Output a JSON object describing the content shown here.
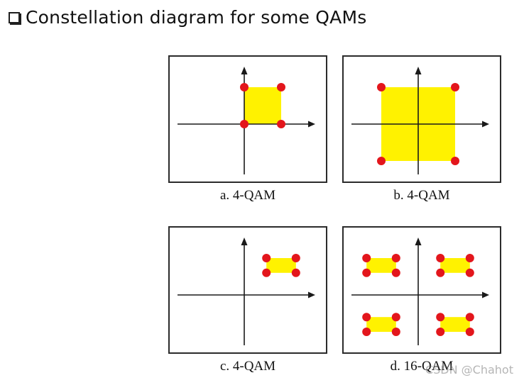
{
  "header": {
    "title": "Constellation diagram for some QAMs"
  },
  "diagrams": [
    {
      "caption": "a. 4-QAM",
      "points": [
        [
          0,
          1
        ],
        [
          1,
          1
        ],
        [
          0,
          0
        ],
        [
          1,
          0
        ]
      ],
      "regions": [
        [
          0,
          0,
          1,
          1
        ]
      ]
    },
    {
      "caption": "b. 4-QAM",
      "points": [
        [
          -1,
          1
        ],
        [
          1,
          1
        ],
        [
          -1,
          -1
        ],
        [
          1,
          -1
        ]
      ],
      "regions": [
        [
          -1,
          -1,
          1,
          1
        ]
      ]
    },
    {
      "caption": "c. 4-QAM",
      "points": [
        [
          0.6,
          1
        ],
        [
          1.4,
          1
        ],
        [
          0.6,
          0.6
        ],
        [
          1.4,
          0.6
        ]
      ],
      "regions": [
        [
          0.6,
          0.6,
          1.4,
          1
        ]
      ]
    },
    {
      "caption": "d. 16-QAM",
      "points": [
        [
          -1.4,
          1
        ],
        [
          -0.6,
          1
        ],
        [
          -1.4,
          0.6
        ],
        [
          -0.6,
          0.6
        ],
        [
          0.6,
          1
        ],
        [
          1.4,
          1
        ],
        [
          0.6,
          0.6
        ],
        [
          1.4,
          0.6
        ],
        [
          -1.4,
          -0.6
        ],
        [
          -0.6,
          -0.6
        ],
        [
          -1.4,
          -1
        ],
        [
          -0.6,
          -1
        ],
        [
          0.6,
          -0.6
        ],
        [
          1.4,
          -0.6
        ],
        [
          0.6,
          -1
        ],
        [
          1.4,
          -1
        ]
      ],
      "regions": [
        [
          -1.4,
          0.6,
          -0.6,
          1
        ],
        [
          0.6,
          0.6,
          1.4,
          1
        ],
        [
          -1.4,
          -1,
          -0.6,
          -0.6
        ],
        [
          0.6,
          -1,
          1.4,
          -0.6
        ]
      ]
    }
  ],
  "colors": {
    "point": "#e3161c",
    "region": "#fff200",
    "axis": "#1a1a1a"
  },
  "watermark": "CSDN @Chahot"
}
